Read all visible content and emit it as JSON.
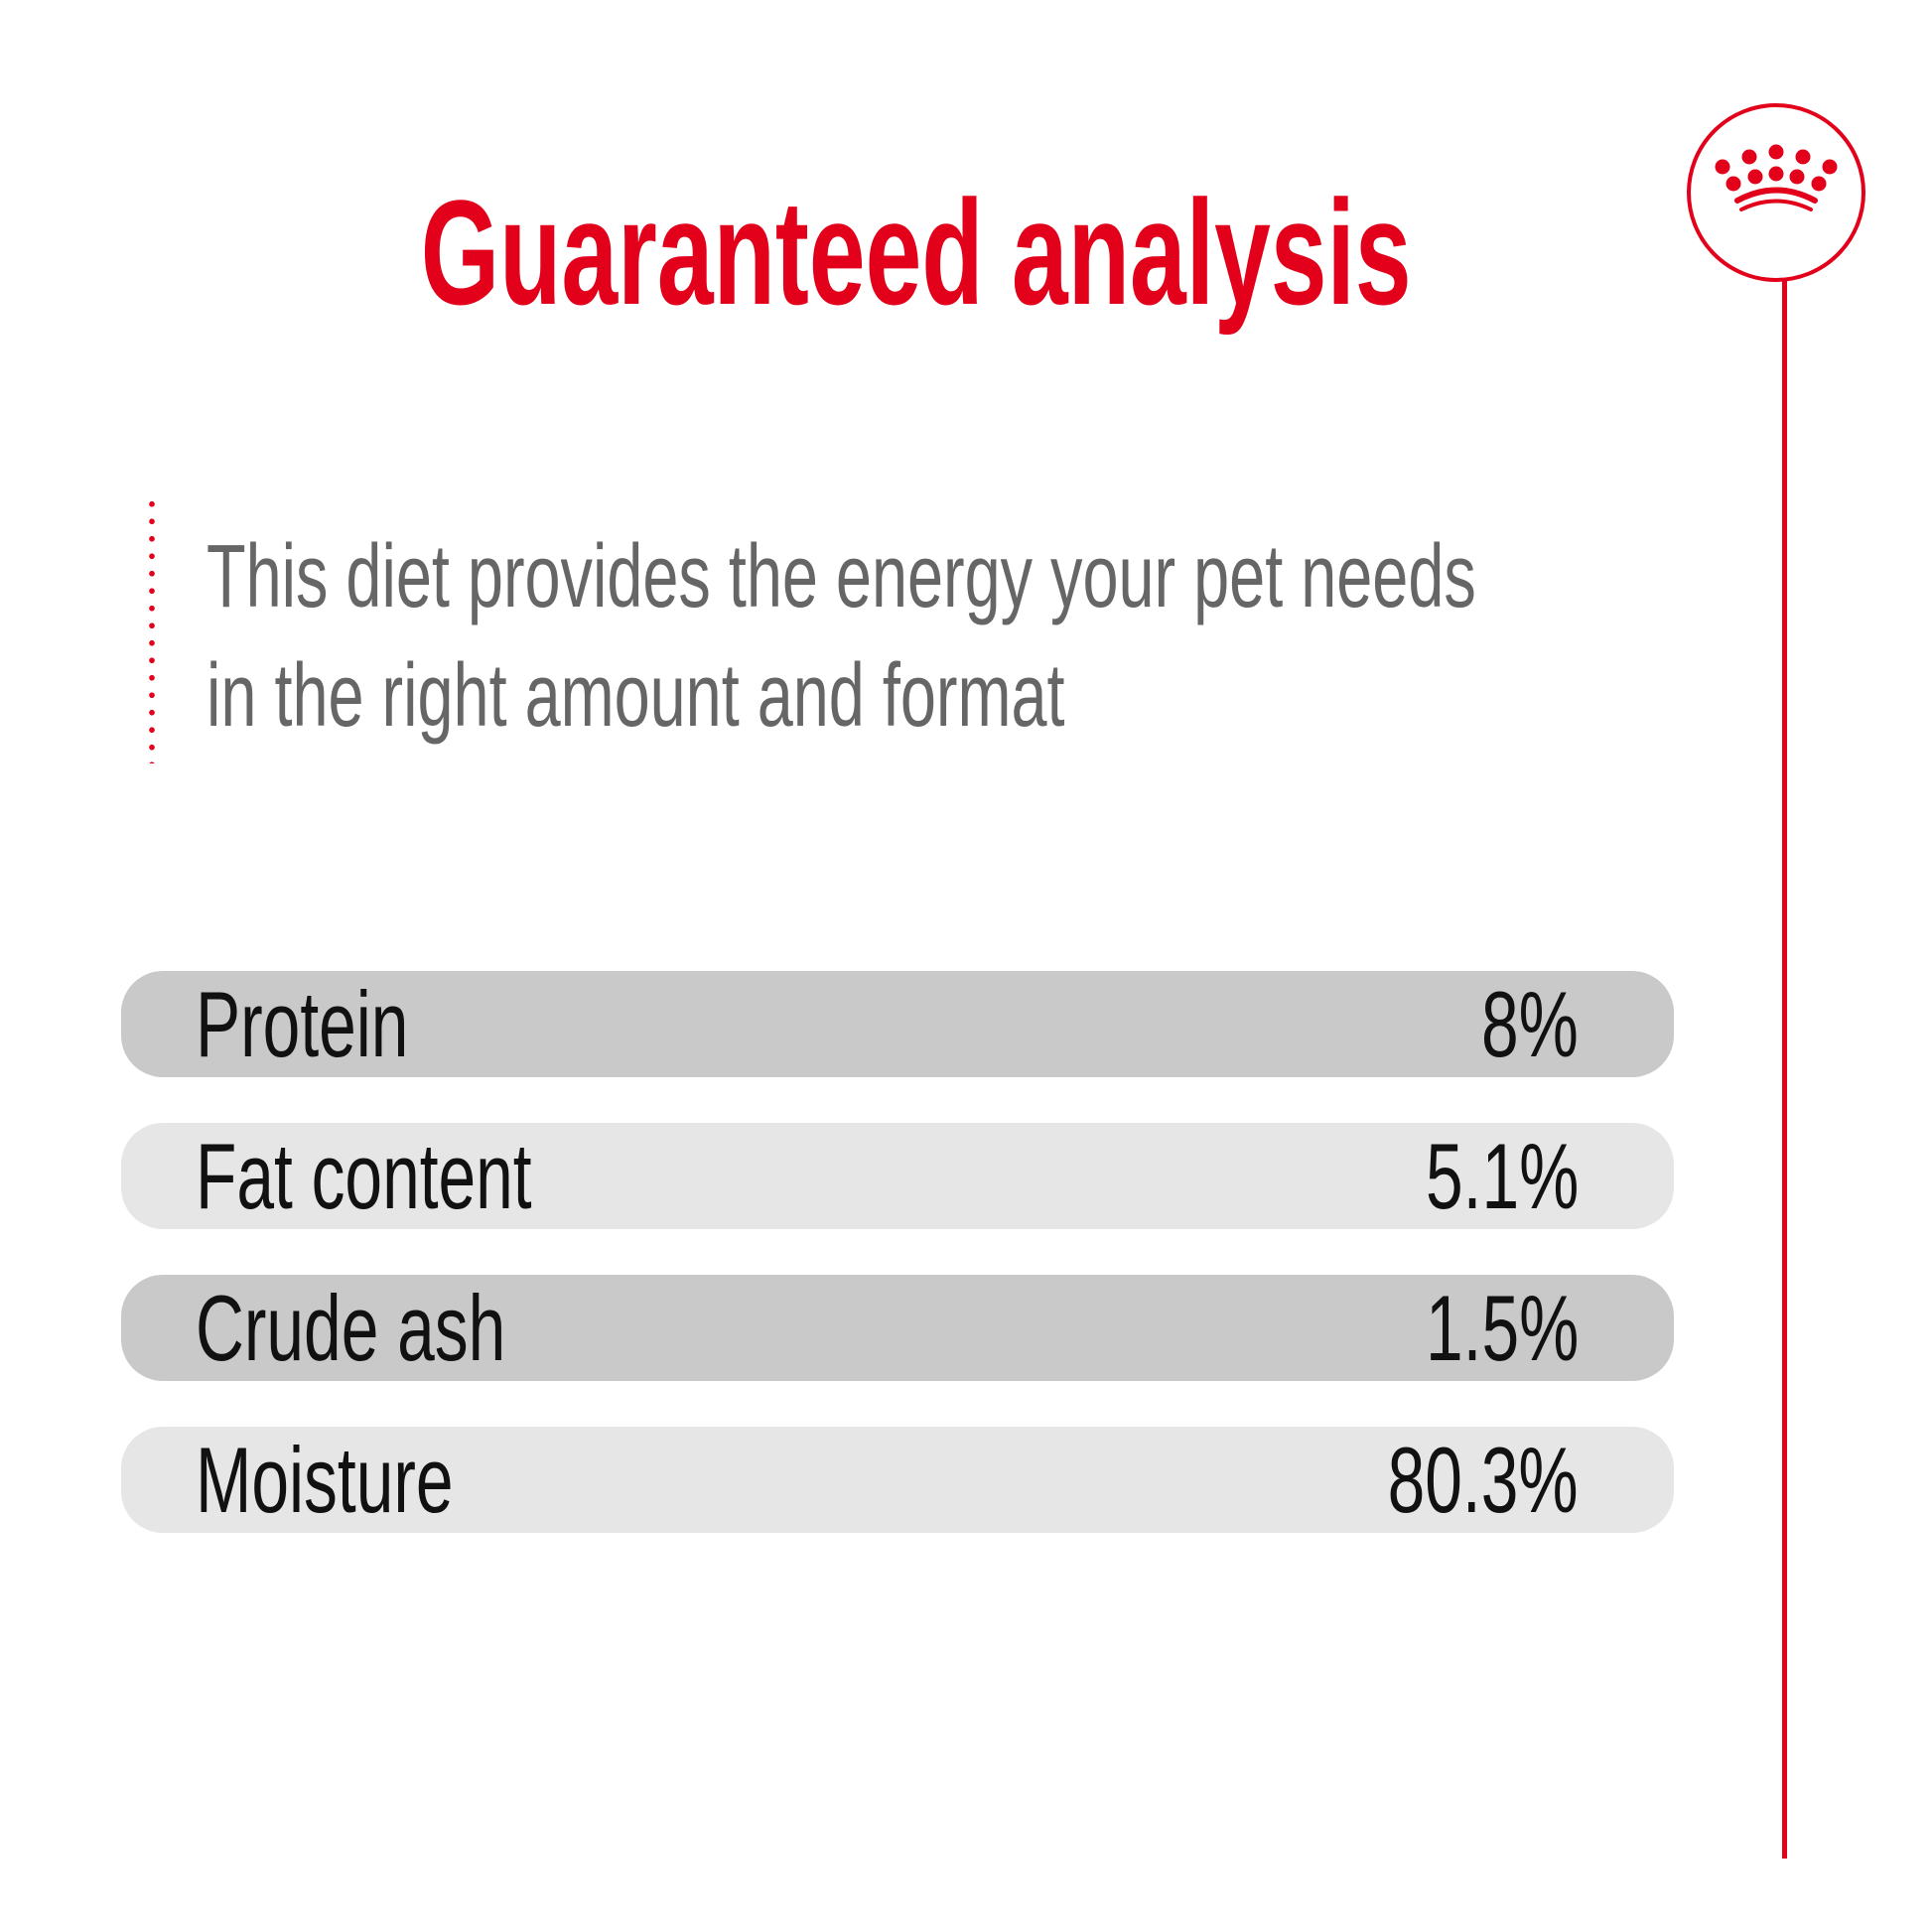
{
  "title": "Guaranteed analysis",
  "description": {
    "lines": [
      "This diet provides the energy your pet needs",
      "in the right amount and format"
    ]
  },
  "analysis": [
    {
      "label": "Protein",
      "value": "8%",
      "shade": "#c9c9c9"
    },
    {
      "label": "Fat content",
      "value": "5.1%",
      "shade": "#e6e6e6"
    },
    {
      "label": "Crude ash",
      "value": "1.5%",
      "shade": "#c9c9c9"
    },
    {
      "label": "Moisture",
      "value": "80.3%",
      "shade": "#e6e6e6"
    }
  ],
  "colors": {
    "accent": "#e2001a",
    "text": "#111111",
    "muted": "#666666"
  },
  "logo": {
    "icon": "crown-icon"
  }
}
